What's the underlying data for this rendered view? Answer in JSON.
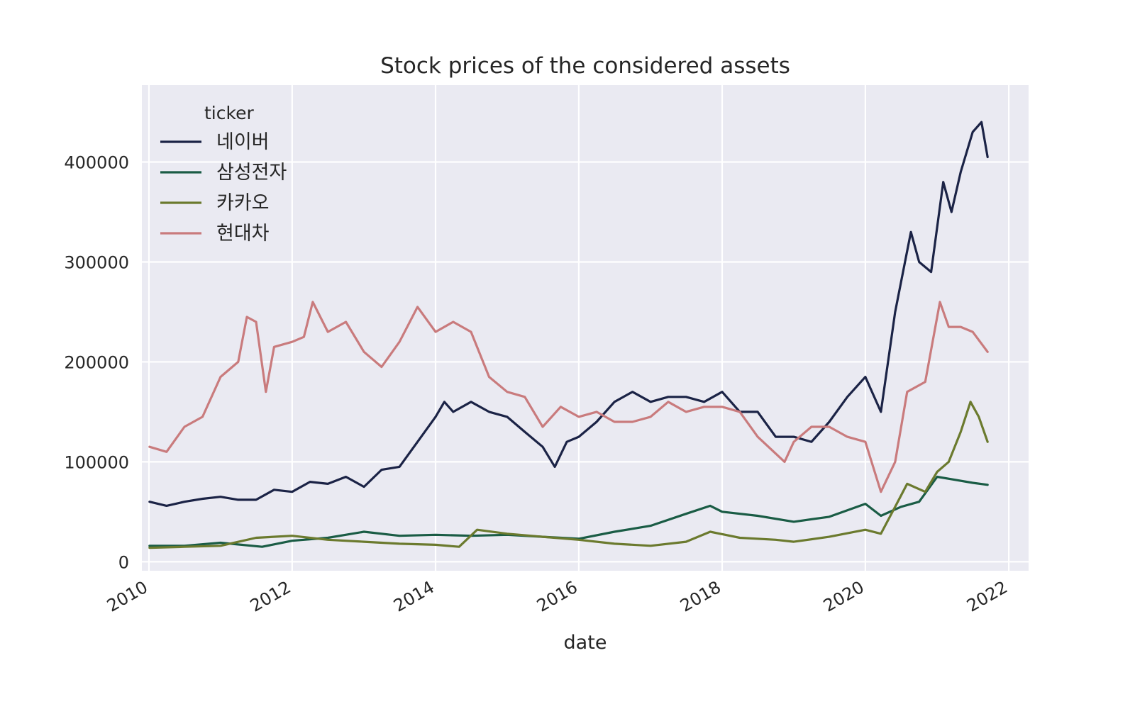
{
  "chart_data": {
    "type": "line",
    "title": "Stock prices of the considered assets",
    "xlabel": "date",
    "ylabel": "",
    "x_ticks": [
      "2010",
      "2012",
      "2014",
      "2016",
      "2018",
      "2020",
      "2022"
    ],
    "y_ticks": [
      "0",
      "100000",
      "200000",
      "300000",
      "400000"
    ],
    "xlim": [
      "2009-11-26",
      "2022-04-12"
    ],
    "ylim": [
      -9000,
      477000
    ],
    "grid": true,
    "legend": {
      "title": "ticker",
      "placement": "top-left"
    },
    "series": [
      {
        "name": "네이버",
        "color": "#1b2346",
        "points": [
          [
            "2010-01-04",
            60000
          ],
          [
            "2010-04-01",
            56000
          ],
          [
            "2010-07-01",
            60000
          ],
          [
            "2010-10-01",
            63000
          ],
          [
            "2011-01-01",
            65000
          ],
          [
            "2011-04-01",
            62000
          ],
          [
            "2011-07-01",
            62000
          ],
          [
            "2011-10-01",
            72000
          ],
          [
            "2012-01-01",
            70000
          ],
          [
            "2012-04-01",
            80000
          ],
          [
            "2012-07-01",
            78000
          ],
          [
            "2012-10-01",
            85000
          ],
          [
            "2013-01-01",
            75000
          ],
          [
            "2013-04-01",
            92000
          ],
          [
            "2013-07-01",
            95000
          ],
          [
            "2013-10-01",
            120000
          ],
          [
            "2014-01-01",
            145000
          ],
          [
            "2014-02-15",
            160000
          ],
          [
            "2014-04-01",
            150000
          ],
          [
            "2014-07-01",
            160000
          ],
          [
            "2014-10-01",
            150000
          ],
          [
            "2015-01-01",
            145000
          ],
          [
            "2015-04-01",
            130000
          ],
          [
            "2015-07-01",
            115000
          ],
          [
            "2015-09-01",
            95000
          ],
          [
            "2015-11-01",
            120000
          ],
          [
            "2016-01-01",
            125000
          ],
          [
            "2016-04-01",
            140000
          ],
          [
            "2016-07-01",
            160000
          ],
          [
            "2016-10-01",
            170000
          ],
          [
            "2017-01-01",
            160000
          ],
          [
            "2017-04-01",
            165000
          ],
          [
            "2017-07-01",
            165000
          ],
          [
            "2017-10-01",
            160000
          ],
          [
            "2018-01-01",
            170000
          ],
          [
            "2018-04-01",
            150000
          ],
          [
            "2018-07-01",
            150000
          ],
          [
            "2018-10-01",
            125000
          ],
          [
            "2019-01-01",
            125000
          ],
          [
            "2019-04-01",
            120000
          ],
          [
            "2019-07-01",
            140000
          ],
          [
            "2019-10-01",
            165000
          ],
          [
            "2020-01-01",
            185000
          ],
          [
            "2020-03-20",
            150000
          ],
          [
            "2020-06-01",
            250000
          ],
          [
            "2020-08-20",
            330000
          ],
          [
            "2020-10-01",
            300000
          ],
          [
            "2020-12-01",
            290000
          ],
          [
            "2021-02-01",
            380000
          ],
          [
            "2021-03-15",
            350000
          ],
          [
            "2021-05-01",
            390000
          ],
          [
            "2021-07-01",
            430000
          ],
          [
            "2021-08-15",
            440000
          ],
          [
            "2021-09-15",
            405000
          ]
        ]
      },
      {
        "name": "삼성전자",
        "color": "#1a5c45",
        "points": [
          [
            "2010-01-04",
            16000
          ],
          [
            "2010-07-01",
            16000
          ],
          [
            "2011-01-01",
            19000
          ],
          [
            "2011-08-01",
            15000
          ],
          [
            "2012-01-01",
            21000
          ],
          [
            "2012-07-01",
            24000
          ],
          [
            "2013-01-01",
            30000
          ],
          [
            "2013-07-01",
            26000
          ],
          [
            "2014-01-01",
            27000
          ],
          [
            "2014-07-01",
            26000
          ],
          [
            "2015-01-01",
            27000
          ],
          [
            "2015-07-01",
            25000
          ],
          [
            "2016-01-01",
            23000
          ],
          [
            "2016-07-01",
            30000
          ],
          [
            "2017-01-01",
            36000
          ],
          [
            "2017-07-01",
            48000
          ],
          [
            "2017-11-01",
            56000
          ],
          [
            "2018-01-01",
            50000
          ],
          [
            "2018-07-01",
            46000
          ],
          [
            "2019-01-01",
            40000
          ],
          [
            "2019-07-01",
            45000
          ],
          [
            "2020-01-01",
            58000
          ],
          [
            "2020-03-20",
            46000
          ],
          [
            "2020-07-01",
            55000
          ],
          [
            "2020-10-01",
            60000
          ],
          [
            "2021-01-01",
            85000
          ],
          [
            "2021-04-01",
            82000
          ],
          [
            "2021-07-01",
            79000
          ],
          [
            "2021-09-15",
            77000
          ]
        ]
      },
      {
        "name": "카카오",
        "color": "#6b7a2e",
        "points": [
          [
            "2010-01-04",
            14000
          ],
          [
            "2010-07-01",
            15000
          ],
          [
            "2011-01-01",
            16000
          ],
          [
            "2011-07-01",
            24000
          ],
          [
            "2012-01-01",
            26000
          ],
          [
            "2012-07-01",
            22000
          ],
          [
            "2013-01-01",
            20000
          ],
          [
            "2013-07-01",
            18000
          ],
          [
            "2014-01-01",
            17000
          ],
          [
            "2014-05-01",
            15000
          ],
          [
            "2014-08-01",
            32000
          ],
          [
            "2015-01-01",
            28000
          ],
          [
            "2015-07-01",
            25000
          ],
          [
            "2016-01-01",
            22000
          ],
          [
            "2016-07-01",
            18000
          ],
          [
            "2017-01-01",
            16000
          ],
          [
            "2017-07-01",
            20000
          ],
          [
            "2017-11-01",
            30000
          ],
          [
            "2018-04-01",
            24000
          ],
          [
            "2018-10-01",
            22000
          ],
          [
            "2019-01-01",
            20000
          ],
          [
            "2019-07-01",
            25000
          ],
          [
            "2020-01-01",
            32000
          ],
          [
            "2020-03-20",
            28000
          ],
          [
            "2020-06-01",
            55000
          ],
          [
            "2020-08-01",
            78000
          ],
          [
            "2020-11-01",
            70000
          ],
          [
            "2021-01-01",
            90000
          ],
          [
            "2021-03-01",
            100000
          ],
          [
            "2021-05-01",
            130000
          ],
          [
            "2021-06-20",
            160000
          ],
          [
            "2021-08-01",
            145000
          ],
          [
            "2021-09-15",
            120000
          ]
        ]
      },
      {
        "name": "현대차",
        "color": "#c97b7d",
        "points": [
          [
            "2010-01-04",
            115000
          ],
          [
            "2010-04-01",
            110000
          ],
          [
            "2010-07-01",
            135000
          ],
          [
            "2010-10-01",
            145000
          ],
          [
            "2011-01-01",
            185000
          ],
          [
            "2011-04-01",
            200000
          ],
          [
            "2011-05-15",
            245000
          ],
          [
            "2011-07-01",
            240000
          ],
          [
            "2011-08-20",
            170000
          ],
          [
            "2011-10-01",
            215000
          ],
          [
            "2012-01-01",
            220000
          ],
          [
            "2012-03-01",
            225000
          ],
          [
            "2012-04-15",
            260000
          ],
          [
            "2012-07-01",
            230000
          ],
          [
            "2012-10-01",
            240000
          ],
          [
            "2013-01-01",
            210000
          ],
          [
            "2013-04-01",
            195000
          ],
          [
            "2013-07-01",
            220000
          ],
          [
            "2013-10-01",
            255000
          ],
          [
            "2014-01-01",
            230000
          ],
          [
            "2014-04-01",
            240000
          ],
          [
            "2014-07-01",
            230000
          ],
          [
            "2014-10-01",
            185000
          ],
          [
            "2015-01-01",
            170000
          ],
          [
            "2015-04-01",
            165000
          ],
          [
            "2015-07-01",
            135000
          ],
          [
            "2015-10-01",
            155000
          ],
          [
            "2016-01-01",
            145000
          ],
          [
            "2016-04-01",
            150000
          ],
          [
            "2016-07-01",
            140000
          ],
          [
            "2016-10-01",
            140000
          ],
          [
            "2017-01-01",
            145000
          ],
          [
            "2017-04-01",
            160000
          ],
          [
            "2017-07-01",
            150000
          ],
          [
            "2017-10-01",
            155000
          ],
          [
            "2018-01-01",
            155000
          ],
          [
            "2018-04-01",
            150000
          ],
          [
            "2018-07-01",
            125000
          ],
          [
            "2018-11-15",
            100000
          ],
          [
            "2019-01-01",
            120000
          ],
          [
            "2019-04-01",
            135000
          ],
          [
            "2019-07-01",
            135000
          ],
          [
            "2019-10-01",
            125000
          ],
          [
            "2020-01-01",
            120000
          ],
          [
            "2020-03-20",
            70000
          ],
          [
            "2020-06-01",
            100000
          ],
          [
            "2020-08-01",
            170000
          ],
          [
            "2020-11-01",
            180000
          ],
          [
            "2021-01-15",
            260000
          ],
          [
            "2021-03-01",
            235000
          ],
          [
            "2021-05-01",
            235000
          ],
          [
            "2021-07-01",
            230000
          ],
          [
            "2021-09-15",
            210000
          ]
        ]
      }
    ]
  }
}
